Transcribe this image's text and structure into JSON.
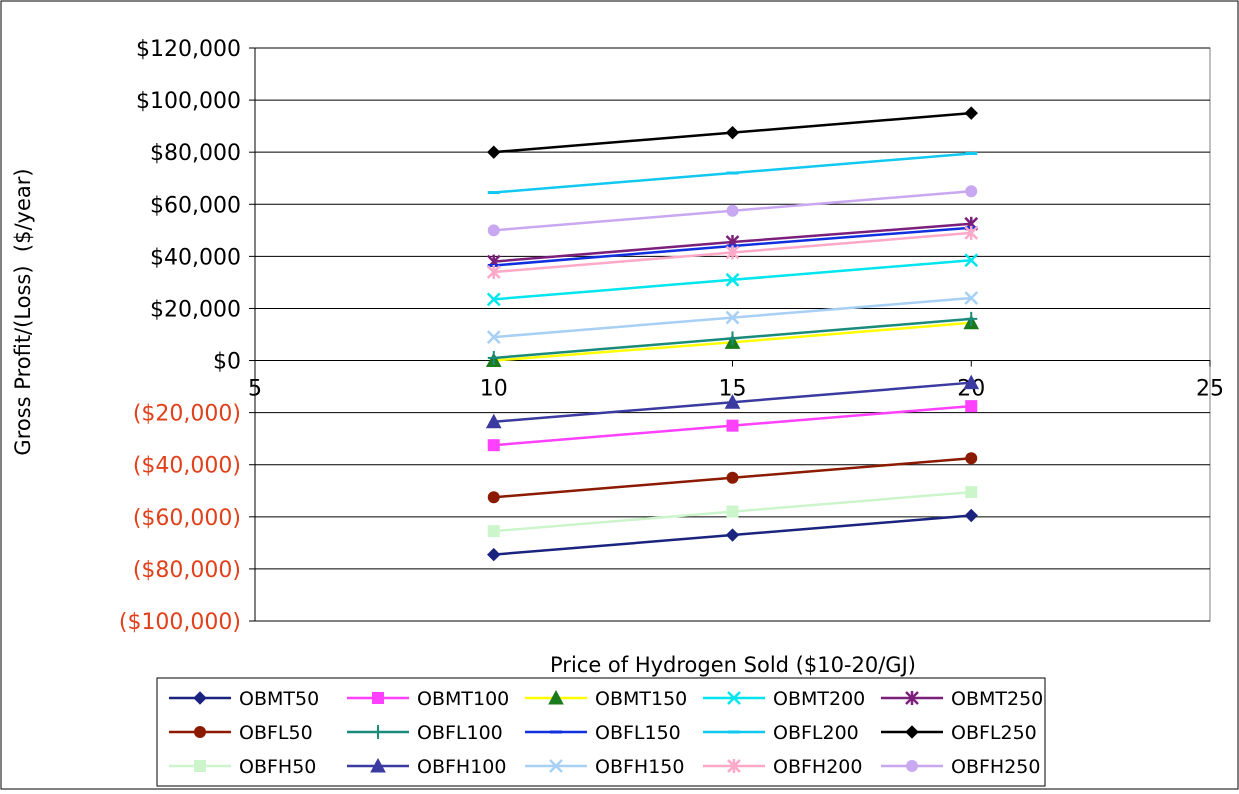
{
  "chart_data": {
    "type": "line",
    "title": "",
    "xlabel": "Price of Hydrogen Sold ($10-20/GJ)",
    "ylabel": "Gross Profit/(Loss)  ($/year)",
    "xlim": [
      5,
      25
    ],
    "ylim": [
      -100000,
      120000
    ],
    "x_ticks": [
      "5",
      "10",
      "15",
      "20",
      "25"
    ],
    "y_ticks": [
      "$120,000",
      "$100,000",
      "$80,000",
      "$60,000",
      "$40,000",
      "$20,000",
      "$0",
      "($20,000)",
      "($40,000)",
      "($60,000)",
      "($80,000)",
      "($100,000)"
    ],
    "y_tick_values": [
      120000,
      100000,
      80000,
      60000,
      40000,
      20000,
      0,
      -20000,
      -40000,
      -60000,
      -80000,
      -100000
    ],
    "negative_tick_color": "#e0401a",
    "grid": "horizontal",
    "legend_position": "bottom",
    "x": [
      10,
      15,
      20
    ],
    "series": [
      {
        "name": "OBMT50",
        "values": [
          -74500,
          -67000,
          -59500
        ],
        "color": "#1a237e",
        "marker": "diamond"
      },
      {
        "name": "OBMT100",
        "values": [
          -32500,
          -25000,
          -17500
        ],
        "color": "#ff40ff",
        "marker": "square"
      },
      {
        "name": "OBMT150",
        "values": [
          0,
          7000,
          14500
        ],
        "color": "#ffff00",
        "marker": "triangle",
        "marker_color": "#1b7a1b"
      },
      {
        "name": "OBMT200",
        "values": [
          23500,
          31000,
          38500
        ],
        "color": "#00e5ee",
        "marker": "x"
      },
      {
        "name": "OBMT250",
        "values": [
          38000,
          45500,
          52500
        ],
        "color": "#7b1f7b",
        "marker": "star"
      },
      {
        "name": "OBFL50",
        "values": [
          -52500,
          -45000,
          -37500
        ],
        "color": "#8b1a00",
        "marker": "circle"
      },
      {
        "name": "OBFL100",
        "values": [
          1000,
          8500,
          16000
        ],
        "color": "#1a8a7a",
        "marker": "plus"
      },
      {
        "name": "OBFL150",
        "values": [
          36500,
          44000,
          51000
        ],
        "color": "#1030e0",
        "marker": "dash"
      },
      {
        "name": "OBFL200",
        "values": [
          64500,
          72000,
          79500
        ],
        "color": "#10c8f0",
        "marker": "dash"
      },
      {
        "name": "OBFL250",
        "values": [
          80000,
          87500,
          95000
        ],
        "color": "#000000",
        "marker": "diamond"
      },
      {
        "name": "OBFH50",
        "values": [
          -65500,
          -58000,
          -50500
        ],
        "color": "#ccf5cc",
        "marker": "square"
      },
      {
        "name": "OBFH100",
        "values": [
          -23500,
          -16000,
          -8500
        ],
        "color": "#3a3aa0",
        "marker": "triangle"
      },
      {
        "name": "OBFH150",
        "values": [
          9000,
          16500,
          24000
        ],
        "color": "#a8d0f5",
        "marker": "x"
      },
      {
        "name": "OBFH200",
        "values": [
          34000,
          41500,
          49000
        ],
        "color": "#ffa8c8",
        "marker": "star"
      },
      {
        "name": "OBFH250",
        "values": [
          50000,
          57500,
          65000
        ],
        "color": "#c8a8f0",
        "marker": "circle"
      }
    ]
  }
}
